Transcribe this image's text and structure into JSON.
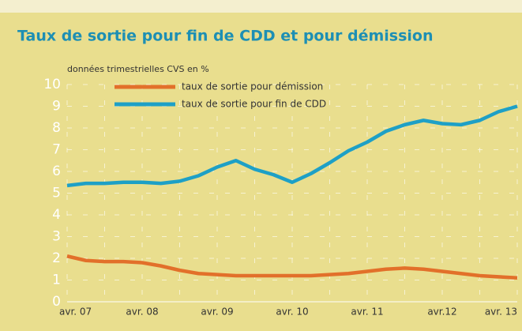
{
  "chart_data": {
    "type": "line",
    "title": "Taux de sortie pour fin de CDD et pour démission",
    "y_label": "données trimestrielles CVS en %",
    "categories": [
      "avr. 07",
      null,
      null,
      null,
      "avr. 08",
      null,
      null,
      null,
      "avr. 09",
      null,
      null,
      null,
      "avr. 10",
      null,
      null,
      null,
      "avr. 11",
      null,
      null,
      null,
      "avr.12",
      null,
      null,
      null,
      "avr. 13"
    ],
    "series": [
      {
        "name": "taux de sortie pour démission",
        "color": "#e2702a",
        "values": [
          2.1,
          1.9,
          1.85,
          1.85,
          1.8,
          1.65,
          1.45,
          1.3,
          1.25,
          1.2,
          1.2,
          1.2,
          1.2,
          1.2,
          1.25,
          1.3,
          1.4,
          1.5,
          1.55,
          1.5,
          1.4,
          1.3,
          1.2,
          1.15,
          1.1
        ]
      },
      {
        "name": "taux de sortie pour fin de CDD",
        "color": "#1ea0c6",
        "values": [
          5.35,
          5.45,
          5.45,
          5.5,
          5.5,
          5.45,
          5.55,
          5.8,
          6.2,
          6.5,
          6.1,
          5.85,
          5.5,
          5.9,
          6.4,
          6.95,
          7.35,
          7.85,
          8.15,
          8.35,
          8.2,
          8.15,
          8.35,
          8.75,
          9.0
        ]
      }
    ],
    "ylim": [
      0,
      10
    ],
    "yticks": [
      0,
      1,
      2,
      3,
      4,
      5,
      6,
      7,
      8,
      9,
      10
    ],
    "grid": true
  }
}
